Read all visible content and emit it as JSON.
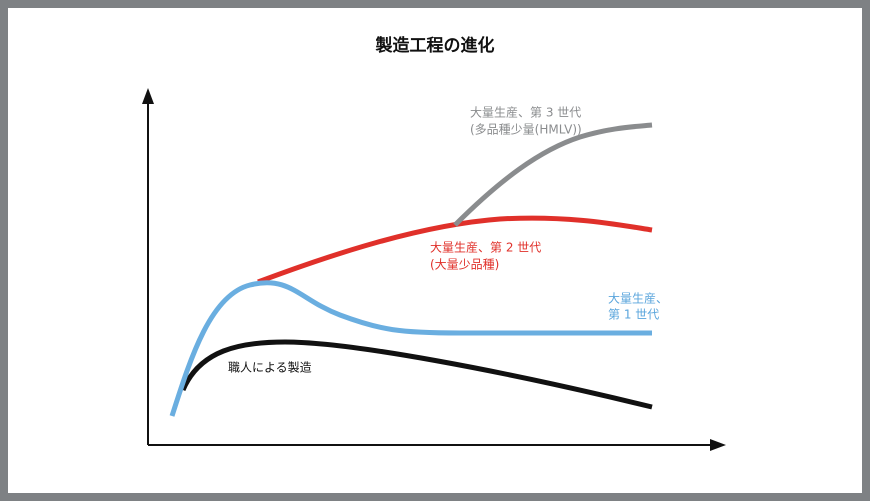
{
  "title": "製造工程の進化",
  "curves": [
    {
      "lines": [
        "大量生産、第 3 世代",
        "(多品種少量(HMLV))"
      ]
    },
    {
      "lines": [
        "大量生産、第 2 世代",
        "(大量少品種)"
      ]
    },
    {
      "lines": [
        "大量生産、",
        "第 1 世代"
      ]
    },
    {
      "lines": [
        "職人による製造"
      ]
    }
  ]
}
